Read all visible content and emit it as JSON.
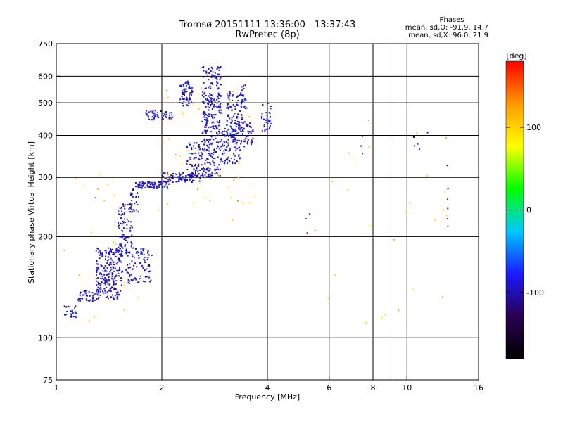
{
  "title": {
    "line1": "Tromsø 20151111 13:36:00—13:37:43",
    "line2": "RwPretec (8p)"
  },
  "phase_stats": {
    "heading": "Phases",
    "line1": "mean, sd,O: -91.9, 14.7",
    "line2": "mean, sd,X: 96.0, 21.9"
  },
  "chart_data": {
    "type": "scatter",
    "xlabel": "Frequency [MHz]",
    "ylabel": "Stationary phase Virtual Height [km]",
    "x_scale": "log",
    "y_scale": "log",
    "xlim": [
      1,
      16
    ],
    "ylim": [
      75,
      750
    ],
    "x_ticks": [
      {
        "value": 1,
        "label": "1"
      },
      {
        "value": 2,
        "label": "2"
      },
      {
        "value": 4,
        "label": "4"
      },
      {
        "value": 6,
        "label": "6"
      },
      {
        "value": 8,
        "label": "8"
      },
      {
        "value": 10,
        "label": "10"
      },
      {
        "value": 16,
        "label": "16"
      }
    ],
    "x_gridlines": [
      2,
      4,
      6,
      8,
      9,
      10
    ],
    "y_ticks": [
      {
        "value": 75,
        "label": "75"
      },
      {
        "value": 100,
        "label": "100"
      },
      {
        "value": 200,
        "label": "200"
      },
      {
        "value": 300,
        "label": "300"
      },
      {
        "value": 400,
        "label": "400"
      },
      {
        "value": 500,
        "label": "500"
      },
      {
        "value": 600,
        "label": "600"
      },
      {
        "value": 750,
        "label": "750"
      }
    ],
    "y_gridlines": [
      100,
      200,
      300,
      400,
      500,
      600
    ],
    "grid": true,
    "colorbar": {
      "label": "[deg]",
      "min": -180,
      "max": 180,
      "ticks": [
        {
          "value": 100,
          "label": "100"
        },
        {
          "value": 0,
          "label": "0"
        },
        {
          "value": -100,
          "label": "-100"
        }
      ],
      "stops": [
        "#000000",
        "#2a0052",
        "#1a1aff",
        "#00c8ff",
        "#00ff00",
        "#ffff00",
        "#ff9900",
        "#ff0000"
      ]
    },
    "series": [
      {
        "mode": "O",
        "phase_mean": -91.9,
        "phase_sd": 14.7,
        "clusters": [
          {
            "f": [
              1.05,
              1.15
            ],
            "h": [
              115,
              125
            ],
            "n": 25
          },
          {
            "f": [
              1.15,
              1.32
            ],
            "h": [
              128,
              138
            ],
            "n": 40
          },
          {
            "f": [
              1.3,
              1.55
            ],
            "h": [
              130,
              185
            ],
            "n": 230
          },
          {
            "f": [
              1.5,
              1.65
            ],
            "h": [
              175,
              250
            ],
            "n": 90
          },
          {
            "f": [
              1.58,
              1.88
            ],
            "h": [
              145,
              185
            ],
            "n": 90
          },
          {
            "f": [
              1.62,
              1.72
            ],
            "h": [
              235,
              280
            ],
            "n": 30
          },
          {
            "f": [
              1.68,
              2.1
            ],
            "h": [
              278,
              292
            ],
            "n": 90
          },
          {
            "f": [
              2.0,
              2.6
            ],
            "h": [
              290,
              310
            ],
            "n": 90
          },
          {
            "f": [
              2.35,
              2.95
            ],
            "h": [
              300,
              380
            ],
            "n": 150
          },
          {
            "f": [
              2.6,
              2.95
            ],
            "h": [
              370,
              640
            ],
            "n": 220
          },
          {
            "f": [
              2.25,
              2.45
            ],
            "h": [
              490,
              580
            ],
            "n": 70
          },
          {
            "f": [
              1.8,
              2.15
            ],
            "h": [
              445,
              475
            ],
            "n": 50
          },
          {
            "f": [
              2.95,
              3.35
            ],
            "h": [
              330,
              420
            ],
            "n": 90
          },
          {
            "f": [
              3.05,
              3.4
            ],
            "h": [
              400,
              540
            ],
            "n": 90
          },
          {
            "f": [
              3.3,
              3.65
            ],
            "h": [
              370,
              440
            ],
            "n": 60
          },
          {
            "f": [
              3.35,
              3.5
            ],
            "h": [
              480,
              570
            ],
            "n": 25
          },
          {
            "f": [
              3.85,
              4.1
            ],
            "h": [
              410,
              500
            ],
            "n": 35
          },
          {
            "f": [
              5.1,
              5.3
            ],
            "h": [
              185,
              245
            ],
            "n": 3
          },
          {
            "f": [
              7.3,
              7.6
            ],
            "h": [
              340,
              420
            ],
            "n": 3
          },
          {
            "f": [
              10.2,
              11.5
            ],
            "h": [
              360,
              410
            ],
            "n": 6
          },
          {
            "f": [
              13.0,
              13.1
            ],
            "h": [
              180,
              350
            ],
            "n": 7
          }
        ]
      },
      {
        "mode": "X",
        "phase_mean": 96.0,
        "phase_sd": 21.9,
        "clusters": [
          {
            "f": [
              1.05,
              2.0
            ],
            "h": [
              110,
              340
            ],
            "n": 22
          },
          {
            "f": [
              2.0,
              3.7
            ],
            "h": [
              220,
              560
            ],
            "n": 45
          },
          {
            "f": [
              5.2,
              13.1
            ],
            "h": [
              110,
              480
            ],
            "n": 26
          }
        ]
      }
    ]
  }
}
